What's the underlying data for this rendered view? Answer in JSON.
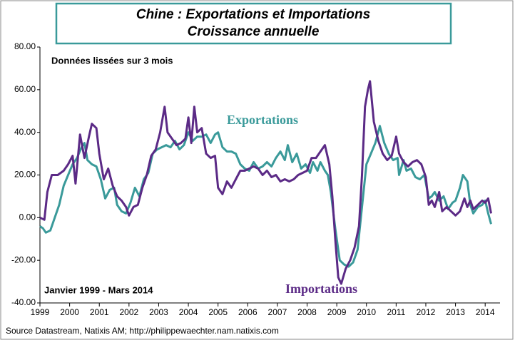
{
  "chart_data": {
    "type": "line",
    "title": [
      "Chine : Exportations et Importations",
      "Croissance annuelle"
    ],
    "annotations": [
      "Données lissées sur 3 mois",
      "Janvier 1999 - Mars 2014"
    ],
    "source": "Source Datastream, Natixis AM; http://philippewaechter.nam.natixis.com",
    "xlim": [
      1999,
      2014.5
    ],
    "xticks": [
      1999,
      2000,
      2001,
      2002,
      2003,
      2004,
      2005,
      2006,
      2007,
      2008,
      2009,
      2010,
      2011,
      2012,
      2013,
      2014
    ],
    "ylim": [
      -40,
      80
    ],
    "yticks": [
      {
        "value": -40,
        "label": "-40.00"
      },
      {
        "value": -20,
        "label": "-20.00"
      },
      {
        "value": 0,
        "label": "0.00"
      },
      {
        "value": 20,
        "label": "20.00"
      },
      {
        "value": 40,
        "label": "40.00"
      },
      {
        "value": 60,
        "label": "60.00"
      },
      {
        "value": 80,
        "label": "80.00"
      }
    ],
    "grid": false,
    "series": [
      {
        "name": "Exportations",
        "color": "#3a9a9a",
        "x": [
          1999,
          1999.1,
          1999.2,
          1999.35,
          1999.5,
          1999.65,
          1999.8,
          1999.95,
          2000.1,
          2000.25,
          2000.4,
          2000.5,
          2000.6,
          2000.75,
          2000.9,
          2001.05,
          2001.2,
          2001.35,
          2001.5,
          2001.6,
          2001.75,
          2001.9,
          2002.05,
          2002.2,
          2002.35,
          2002.5,
          2002.65,
          2002.8,
          2002.95,
          2003.1,
          2003.25,
          2003.4,
          2003.55,
          2003.7,
          2003.85,
          2004,
          2004.15,
          2004.3,
          2004.45,
          2004.6,
          2004.75,
          2004.9,
          2005,
          2005.15,
          2005.3,
          2005.45,
          2005.6,
          2005.75,
          2005.9,
          2006.05,
          2006.2,
          2006.35,
          2006.5,
          2006.65,
          2006.8,
          2006.95,
          2007.1,
          2007.25,
          2007.35,
          2007.5,
          2007.65,
          2007.8,
          2007.95,
          2008.1,
          2008.2,
          2008.35,
          2008.45,
          2008.6,
          2008.7,
          2008.8,
          2008.95,
          2009.1,
          2009.25,
          2009.4,
          2009.55,
          2009.7,
          2009.85,
          2010,
          2010.15,
          2010.3,
          2010.45,
          2010.6,
          2010.75,
          2010.9,
          2011.05,
          2011.1,
          2011.25,
          2011.35,
          2011.5,
          2011.65,
          2011.8,
          2011.95,
          2012.1,
          2012.2,
          2012.3,
          2012.45,
          2012.6,
          2012.75,
          2012.9,
          2013,
          2013.15,
          2013.25,
          2013.4,
          2013.5,
          2013.6,
          2013.75,
          2013.9,
          2014,
          2014.1,
          2014.2
        ],
        "values": [
          -4,
          -5,
          -7,
          -6,
          0,
          6,
          15,
          20,
          25,
          28,
          33,
          35,
          27,
          25,
          24,
          18,
          9,
          13,
          14,
          6,
          3,
          2,
          7,
          14,
          10,
          18,
          21,
          30,
          32,
          33,
          34,
          33,
          36,
          32,
          34,
          40,
          36,
          38,
          38,
          39,
          35,
          39,
          40,
          33,
          31,
          31,
          30,
          25,
          23,
          22,
          26,
          23,
          24,
          26,
          24,
          28,
          31,
          27,
          34,
          26,
          30,
          23,
          25,
          21,
          26,
          22,
          26,
          22,
          20,
          12,
          -5,
          -20,
          -22,
          -23,
          -21,
          -15,
          5,
          25,
          30,
          35,
          43,
          35,
          30,
          27,
          28,
          20,
          27,
          22,
          23,
          19,
          18,
          20,
          9,
          10,
          12,
          8,
          10,
          4,
          7,
          8,
          14,
          20,
          17,
          6,
          2,
          5,
          6,
          8,
          2,
          -3
        ]
      },
      {
        "name": "Importations",
        "color": "#5b2a86",
        "x": [
          1999,
          1999.15,
          1999.25,
          1999.4,
          1999.6,
          1999.8,
          1999.95,
          2000.1,
          2000.2,
          2000.35,
          2000.5,
          2000.65,
          2000.75,
          2000.9,
          2001,
          2001.15,
          2001.3,
          2001.45,
          2001.6,
          2001.75,
          2001.9,
          2002,
          2002.15,
          2002.3,
          2002.45,
          2002.6,
          2002.75,
          2002.9,
          2003.05,
          2003.2,
          2003.3,
          2003.45,
          2003.6,
          2003.75,
          2003.9,
          2004,
          2004.1,
          2004.2,
          2004.3,
          2004.45,
          2004.6,
          2004.75,
          2004.9,
          2005,
          2005.15,
          2005.3,
          2005.45,
          2005.6,
          2005.75,
          2005.9,
          2006.05,
          2006.2,
          2006.35,
          2006.5,
          2006.65,
          2006.8,
          2006.95,
          2007.1,
          2007.25,
          2007.4,
          2007.55,
          2007.7,
          2007.85,
          2008,
          2008.15,
          2008.3,
          2008.45,
          2008.6,
          2008.75,
          2008.85,
          2008.95,
          2009.05,
          2009.15,
          2009.3,
          2009.45,
          2009.6,
          2009.75,
          2009.85,
          2009.95,
          2010.05,
          2010.12,
          2010.25,
          2010.4,
          2010.55,
          2010.7,
          2010.85,
          2011,
          2011.1,
          2011.25,
          2011.4,
          2011.55,
          2011.7,
          2011.85,
          2012,
          2012.1,
          2012.2,
          2012.3,
          2012.45,
          2012.55,
          2012.7,
          2012.85,
          2013,
          2013.15,
          2013.3,
          2013.4,
          2013.5,
          2013.6,
          2013.75,
          2013.9,
          2014,
          2014.1,
          2014.2
        ],
        "values": [
          0,
          -1,
          12,
          20,
          20,
          22,
          25,
          29,
          16,
          39,
          28,
          38,
          44,
          42,
          30,
          18,
          23,
          15,
          10,
          8,
          5,
          1,
          5,
          6,
          14,
          20,
          29,
          32,
          40,
          52,
          40,
          37,
          34,
          35,
          37,
          47,
          35,
          52,
          40,
          42,
          30,
          28,
          29,
          14,
          11,
          17,
          14,
          18,
          22,
          22,
          23,
          24,
          23,
          20,
          22,
          19,
          20,
          17,
          18,
          17,
          18,
          20,
          21,
          22,
          28,
          28,
          31,
          34,
          25,
          10,
          -10,
          -28,
          -31,
          -24,
          -20,
          -14,
          -4,
          20,
          52,
          60,
          64,
          45,
          36,
          30,
          27,
          29,
          38,
          30,
          26,
          24,
          26,
          27,
          25,
          19,
          6,
          8,
          5,
          12,
          3,
          5,
          3,
          1,
          3,
          9,
          5,
          8,
          4,
          6,
          8,
          7,
          9,
          2
        ]
      }
    ]
  }
}
